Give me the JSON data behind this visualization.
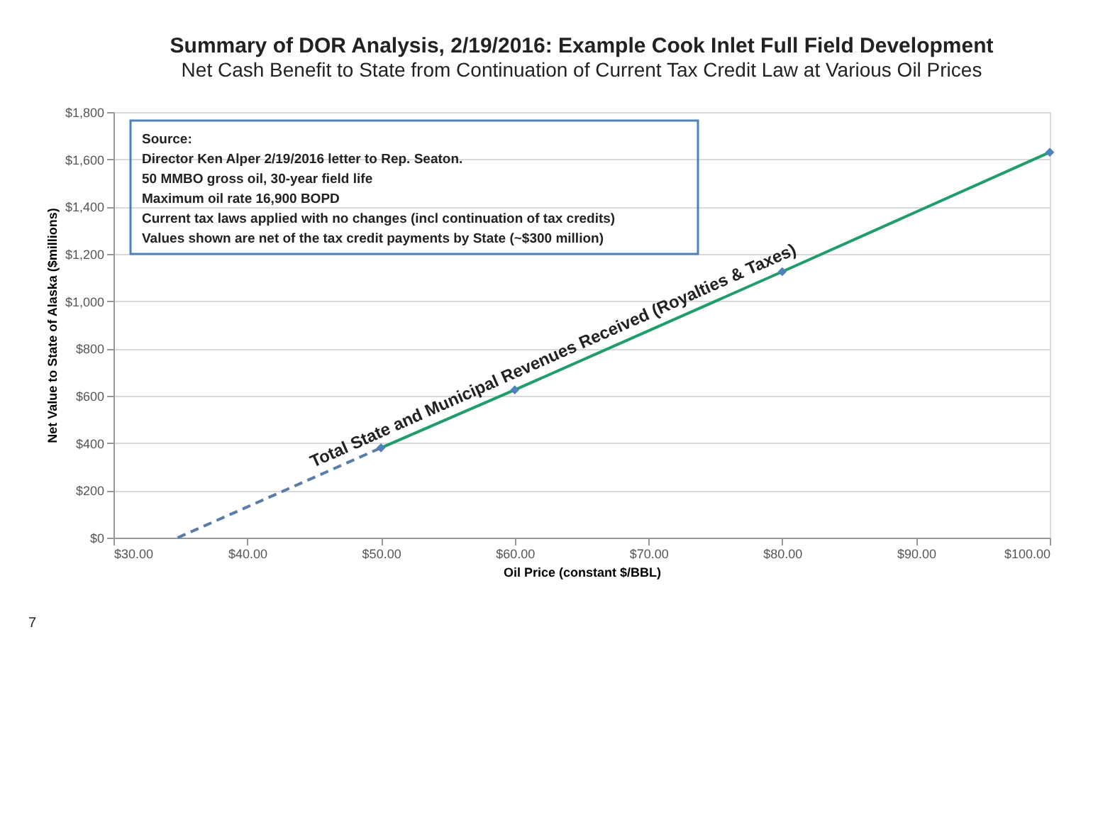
{
  "chart_data": {
    "type": "line",
    "title": "Summary of DOR Analysis, 2/19/2016:  Example Cook Inlet Full Field Development",
    "subtitle": "Net Cash Benefit to State from Continuation of Current Tax Credit Law at Various Oil Prices",
    "xlabel": "Oil Price (constant $/BBL)",
    "ylabel": "Net Value to State of Alaska ($millions)",
    "series": [
      {
        "color": "#1f9d6b",
        "x": [
          50,
          60,
          80,
          100
        ],
        "values": [
          380,
          625,
          1125,
          1630
        ],
        "marker": "none",
        "line_style": "solid"
      },
      {
        "type": "scatter",
        "color": "#4f81bd",
        "x": [
          50,
          60,
          80,
          100
        ],
        "values": [
          380,
          625,
          1125,
          1630
        ],
        "marker": "diamond"
      },
      {
        "color": "#5a7ca8",
        "x": [
          34.8,
          50
        ],
        "values": [
          0,
          380
        ],
        "marker": "none",
        "line_style": "dashed"
      }
    ],
    "xlim": [
      30,
      100
    ],
    "xticks": [
      {
        "value": 30,
        "label": "$30.00"
      },
      {
        "value": 40,
        "label": "$40.00"
      },
      {
        "value": 50,
        "label": "$50.00"
      },
      {
        "value": 60,
        "label": "$60.00"
      },
      {
        "value": 70,
        "label": "$70.00"
      },
      {
        "value": 80,
        "label": "$80.00"
      },
      {
        "value": 90,
        "label": "$90.00"
      },
      {
        "value": 100,
        "label": "$100.00"
      }
    ],
    "ylim": [
      0,
      1800
    ],
    "yticks": [
      {
        "value": 0,
        "label": "$0"
      },
      {
        "value": 200,
        "label": "$200"
      },
      {
        "value": 400,
        "label": "$400"
      },
      {
        "value": 600,
        "label": "$600"
      },
      {
        "value": 800,
        "label": "$800"
      },
      {
        "value": 1000,
        "label": "$1,000"
      },
      {
        "value": 1200,
        "label": "$1,200"
      },
      {
        "value": 1400,
        "label": "$1,400"
      },
      {
        "value": 1600,
        "label": "$1,600"
      },
      {
        "value": 1800,
        "label": "$1,800"
      }
    ],
    "grid": "y",
    "annotations": [
      "Source:",
      "Director Ken Alper 2/19/2016 letter to Rep. Seaton.",
      "50 MMBO gross oil, 30-year field life",
      "Maximum oil rate 16,900 BOPD",
      "Current tax laws applied with no changes (incl continuation of tax credits)",
      "Values shown are net of the tax credit payments by State (~$300 million)",
      "7",
      "Total State and Municipal Revenues Received (Royalties & Taxes)"
    ]
  }
}
